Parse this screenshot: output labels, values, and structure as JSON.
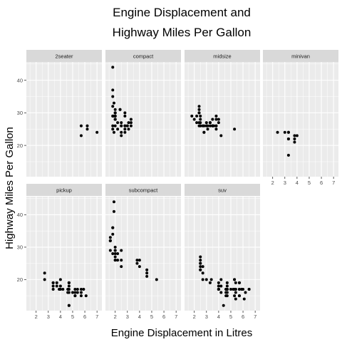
{
  "chart_data": {
    "type": "scatter",
    "title_lines": [
      "Engine Displacement and",
      "Highway Miles Per Gallon"
    ],
    "xlabel": "Engine Displacement in Litres",
    "ylabel": "Highway Miles Per Gallon",
    "xlim": [
      1.2,
      7.4
    ],
    "ylim": [
      10.4,
      45.6
    ],
    "x_ticks": [
      2,
      3,
      4,
      5,
      6,
      7
    ],
    "y_ticks": [
      20,
      30,
      40
    ],
    "grid": true,
    "panel_background": "#ebebeb",
    "strip_background": "#d9d9d9",
    "point_color": "#000000",
    "facets": [
      {
        "name": "2seater",
        "points": [
          [
            5.7,
            26
          ],
          [
            5.7,
            23
          ],
          [
            6.2,
            26
          ],
          [
            6.2,
            25
          ],
          [
            7.0,
            24
          ]
        ]
      },
      {
        "name": "compact",
        "points": [
          [
            1.8,
            29
          ],
          [
            1.8,
            29
          ],
          [
            2.0,
            31
          ],
          [
            2.0,
            30
          ],
          [
            2.8,
            26
          ],
          [
            2.8,
            26
          ],
          [
            3.1,
            27
          ],
          [
            1.8,
            26
          ],
          [
            1.8,
            25
          ],
          [
            2.0,
            28
          ],
          [
            2.0,
            29
          ],
          [
            2.8,
            25
          ],
          [
            3.1,
            25
          ],
          [
            2.2,
            27
          ],
          [
            2.2,
            25
          ],
          [
            2.4,
            31
          ],
          [
            2.4,
            31
          ],
          [
            3.0,
            26
          ],
          [
            3.0,
            26
          ],
          [
            3.3,
            28
          ],
          [
            1.8,
            44
          ],
          [
            1.8,
            37
          ],
          [
            1.8,
            35
          ],
          [
            2.0,
            29
          ],
          [
            2.0,
            26
          ],
          [
            2.0,
            29
          ],
          [
            2.8,
            29
          ],
          [
            1.9,
            24
          ],
          [
            2.5,
            24
          ],
          [
            2.5,
            23
          ],
          [
            2.5,
            26
          ],
          [
            1.9,
            33
          ],
          [
            1.9,
            29
          ],
          [
            2.0,
            30
          ],
          [
            2.0,
            28
          ],
          [
            2.8,
            24
          ],
          [
            1.8,
            32
          ],
          [
            2.5,
            26
          ],
          [
            2.5,
            27
          ],
          [
            2.0,
            30
          ],
          [
            2.0,
            28
          ],
          [
            2.0,
            29
          ],
          [
            2.8,
            30
          ],
          [
            3.3,
            27
          ],
          [
            3.3,
            26
          ]
        ]
      },
      {
        "name": "midsize",
        "points": [
          [
            2.8,
            24
          ],
          [
            3.1,
            26
          ],
          [
            4.2,
            23
          ],
          [
            2.4,
            27
          ],
          [
            2.4,
            30
          ],
          [
            2.5,
            26
          ],
          [
            3.3,
            27
          ],
          [
            3.5,
            26
          ],
          [
            3.8,
            26
          ],
          [
            3.1,
            25
          ],
          [
            3.8,
            25
          ],
          [
            3.8,
            26
          ],
          [
            5.3,
            25
          ],
          [
            2.4,
            31
          ],
          [
            2.4,
            32
          ],
          [
            3.0,
            27
          ],
          [
            2.2,
            27
          ],
          [
            2.4,
            30
          ],
          [
            2.5,
            26
          ],
          [
            3.6,
            26
          ],
          [
            3.8,
            28
          ],
          [
            4.0,
            28
          ],
          [
            2.5,
            29
          ],
          [
            2.5,
            28
          ],
          [
            3.5,
            26
          ],
          [
            2.0,
            28
          ],
          [
            2.2,
            29
          ],
          [
            2.5,
            27
          ],
          [
            2.8,
            26
          ],
          [
            3.0,
            26
          ],
          [
            3.3,
            27
          ],
          [
            3.5,
            26
          ],
          [
            1.8,
            29
          ],
          [
            2.4,
            26
          ],
          [
            2.8,
            24
          ],
          [
            3.0,
            26
          ],
          [
            3.5,
            28
          ],
          [
            3.8,
            29
          ],
          [
            4.0,
            27
          ],
          [
            2.7,
            26
          ],
          [
            3.3,
            26
          ]
        ]
      },
      {
        "name": "minivan",
        "points": [
          [
            2.4,
            24
          ],
          [
            3.0,
            24
          ],
          [
            3.3,
            22
          ],
          [
            3.3,
            22
          ],
          [
            3.3,
            24
          ],
          [
            3.3,
            24
          ],
          [
            3.3,
            17
          ],
          [
            3.8,
            22
          ],
          [
            3.8,
            21
          ],
          [
            3.8,
            23
          ],
          [
            4.0,
            23
          ]
        ]
      },
      {
        "name": "pickup",
        "points": [
          [
            3.7,
            19
          ],
          [
            3.7,
            18
          ],
          [
            3.9,
            17
          ],
          [
            3.9,
            17
          ],
          [
            4.7,
            19
          ],
          [
            4.7,
            19
          ],
          [
            4.7,
            12
          ],
          [
            5.2,
            17
          ],
          [
            5.2,
            15
          ],
          [
            5.7,
            17
          ],
          [
            5.9,
            17
          ],
          [
            4.7,
            19
          ],
          [
            5.2,
            16
          ],
          [
            5.2,
            15
          ],
          [
            4.6,
            17
          ],
          [
            5.4,
            17
          ],
          [
            5.4,
            16
          ],
          [
            2.7,
            20
          ],
          [
            2.7,
            22
          ],
          [
            3.4,
            19
          ],
          [
            3.4,
            17
          ],
          [
            4.0,
            20
          ],
          [
            4.0,
            17
          ],
          [
            4.7,
            18
          ],
          [
            4.7,
            16
          ],
          [
            5.7,
            15
          ],
          [
            6.1,
            15
          ],
          [
            4.7,
            12
          ],
          [
            4.7,
            17
          ],
          [
            5.7,
            16
          ],
          [
            3.4,
            18
          ],
          [
            3.4,
            19
          ],
          [
            4.0,
            18
          ],
          [
            4.6,
            16
          ],
          [
            5.0,
            16
          ],
          [
            4.2,
            17
          ]
        ]
      },
      {
        "name": "subcompact",
        "points": [
          [
            3.8,
            26
          ],
          [
            3.8,
            25
          ],
          [
            4.0,
            26
          ],
          [
            4.0,
            24
          ],
          [
            4.6,
            21
          ],
          [
            4.6,
            22
          ],
          [
            4.6,
            23
          ],
          [
            5.4,
            20
          ],
          [
            1.6,
            33
          ],
          [
            1.6,
            32
          ],
          [
            1.6,
            32
          ],
          [
            1.6,
            29
          ],
          [
            1.6,
            32
          ],
          [
            1.8,
            34
          ],
          [
            1.8,
            36
          ],
          [
            1.8,
            36
          ],
          [
            2.0,
            29
          ],
          [
            2.0,
            26
          ],
          [
            2.0,
            27
          ],
          [
            2.0,
            30
          ],
          [
            1.9,
            44
          ],
          [
            1.9,
            41
          ],
          [
            2.0,
            29
          ],
          [
            2.0,
            26
          ],
          [
            2.5,
            24
          ],
          [
            1.8,
            28
          ],
          [
            2.0,
            28
          ],
          [
            2.2,
            26
          ],
          [
            2.2,
            28
          ],
          [
            2.5,
            26
          ],
          [
            2.5,
            29
          ]
        ]
      },
      {
        "name": "suv",
        "points": [
          [
            5.3,
            20
          ],
          [
            5.3,
            15
          ],
          [
            5.3,
            20
          ],
          [
            5.7,
            17
          ],
          [
            6.0,
            17
          ],
          [
            5.7,
            19
          ],
          [
            6.5,
            17
          ],
          [
            4.7,
            17
          ],
          [
            4.7,
            17
          ],
          [
            5.9,
            17
          ],
          [
            5.7,
            15
          ],
          [
            4.0,
            17
          ],
          [
            4.0,
            19
          ],
          [
            4.0,
            17
          ],
          [
            4.6,
            17
          ],
          [
            5.4,
            17
          ],
          [
            5.4,
            19
          ],
          [
            2.5,
            23
          ],
          [
            2.5,
            27
          ],
          [
            2.5,
            25
          ],
          [
            2.5,
            26
          ],
          [
            3.0,
            20
          ],
          [
            3.3,
            19
          ],
          [
            4.0,
            18
          ],
          [
            4.0,
            17
          ],
          [
            4.6,
            17
          ],
          [
            4.7,
            17
          ],
          [
            5.4,
            17
          ],
          [
            5.4,
            16
          ],
          [
            5.9,
            17
          ],
          [
            4.7,
            19
          ],
          [
            5.0,
            17
          ],
          [
            6.1,
            14
          ],
          [
            4.6,
            16
          ],
          [
            2.7,
            20
          ],
          [
            4.0,
            17
          ],
          [
            4.7,
            17
          ],
          [
            4.2,
            16
          ],
          [
            4.2,
            18
          ],
          [
            4.4,
            12
          ],
          [
            5.7,
            15
          ],
          [
            6.5,
            17
          ],
          [
            4.7,
            16
          ],
          [
            5.3,
            17
          ],
          [
            5.7,
            19
          ],
          [
            5.2,
            17
          ],
          [
            4.7,
            17
          ],
          [
            2.5,
            25
          ],
          [
            2.5,
            24
          ],
          [
            2.7,
            22
          ],
          [
            2.7,
            24
          ],
          [
            3.4,
            20
          ],
          [
            4.0,
            18
          ],
          [
            4.0,
            17
          ],
          [
            4.7,
            18
          ],
          [
            5.7,
            17
          ],
          [
            4.2,
            20
          ],
          [
            4.7,
            15
          ],
          [
            4.6,
            15
          ],
          [
            6.2,
            16
          ],
          [
            5.4,
            14
          ],
          [
            2.5,
            23
          ]
        ]
      }
    ]
  }
}
